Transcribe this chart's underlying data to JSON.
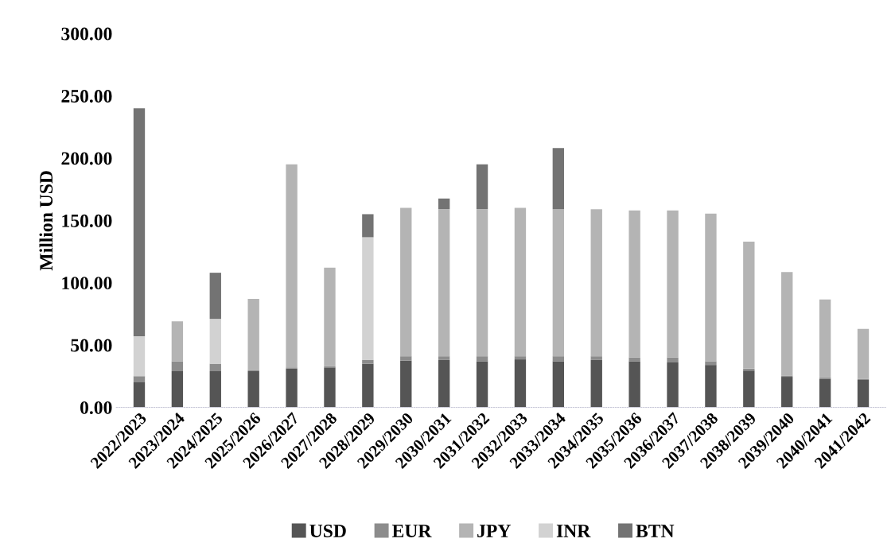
{
  "chart_data": {
    "type": "bar",
    "stacked": true,
    "ylabel": "Million USD",
    "categories": [
      "2022/2023",
      "2023/2024",
      "2024/2025",
      "2025/2026",
      "2026/2027",
      "2027/2028",
      "2028/2029",
      "2029/2030",
      "2030/2031",
      "2031/2032",
      "2032/2033",
      "2033/2034",
      "2034/2035",
      "2035/2036",
      "2036/2037",
      "2037/2038",
      "2038/2039",
      "2039/2040",
      "2040/2041",
      "2041/2042"
    ],
    "series": [
      {
        "name": "USD",
        "color": "#555555",
        "values": [
          20,
          29,
          29,
          29,
          31,
          32,
          35,
          37.5,
          38,
          37,
          38.5,
          37,
          38,
          37,
          36,
          34,
          29.5,
          24.5,
          23,
          22
        ]
      },
      {
        "name": "EUR",
        "color": "#8c8c8c",
        "values": [
          5,
          8,
          6,
          1,
          1,
          1,
          3,
          3.5,
          3,
          4,
          2.5,
          4,
          3,
          3,
          4,
          3,
          1.5,
          1,
          1,
          1
        ]
      },
      {
        "name": "JPY",
        "color": "#b4b4b4",
        "values": [
          null,
          32,
          null,
          57,
          163,
          79,
          null,
          119,
          118,
          118,
          119,
          118,
          118,
          118,
          118,
          118.5,
          102,
          83,
          62.5,
          40
        ]
      },
      {
        "name": "INR",
        "color": "#d2d2d2",
        "values": [
          32,
          null,
          36,
          null,
          null,
          null,
          98.5,
          null,
          null,
          null,
          null,
          null,
          null,
          null,
          null,
          null,
          null,
          null,
          null,
          null
        ]
      },
      {
        "name": "BTN",
        "color": "#737373",
        "values": [
          183,
          null,
          37,
          null,
          null,
          null,
          18.5,
          null,
          8.5,
          36,
          null,
          49,
          null,
          null,
          null,
          null,
          null,
          null,
          null,
          null
        ]
      }
    ],
    "ylim": [
      0,
      300
    ],
    "yticks": [
      {
        "value": 0,
        "label": "0.00"
      },
      {
        "value": 50,
        "label": "50.00"
      },
      {
        "value": 100,
        "label": "100.00"
      },
      {
        "value": 150,
        "label": "150.00"
      },
      {
        "value": 200,
        "label": "200.00"
      },
      {
        "value": 250,
        "label": "250.00"
      },
      {
        "value": 300,
        "label": "300.00"
      }
    ],
    "legend": "bottom",
    "grid": false
  }
}
